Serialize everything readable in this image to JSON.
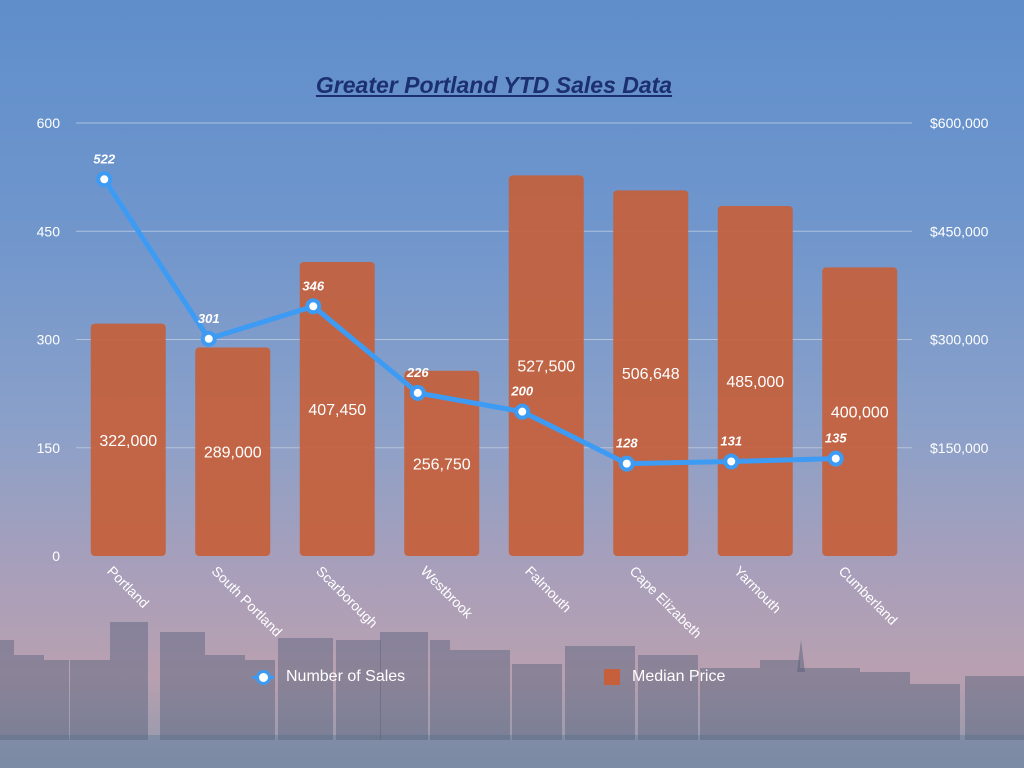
{
  "chart_data": {
    "type": "bar+line",
    "title": "Greater Portland YTD Sales Data",
    "categories": [
      "Portland",
      "South Portland",
      "Scarborough",
      "Westbrook",
      "Falmouth",
      "Cape Elizabeth",
      "Yarmouth",
      "Cumberland"
    ],
    "series": [
      {
        "name": "Median Price",
        "type": "bar",
        "axis": "right",
        "values": [
          322000,
          289000,
          407450,
          256750,
          527500,
          506648,
          485000,
          400000
        ],
        "labels": [
          "322,000",
          "289,000",
          "407,450",
          "256,750",
          "527,500",
          "506,648",
          "485,000",
          "400,000"
        ],
        "color": "#c65f3b"
      },
      {
        "name": "Number of Sales",
        "type": "line",
        "axis": "left",
        "values": [
          522,
          301,
          346,
          226,
          200,
          128,
          131,
          135
        ],
        "labels": [
          "522",
          "301",
          "346",
          "226",
          "200",
          "128",
          "131",
          "135"
        ],
        "color": "#3d9bf4"
      }
    ],
    "left_axis": {
      "ylim": [
        0,
        600
      ],
      "ticks": [
        0,
        150,
        300,
        450,
        600
      ],
      "tick_labels": [
        "0",
        "150",
        "300",
        "450",
        "600"
      ]
    },
    "right_axis": {
      "ylim": [
        0,
        600000
      ],
      "ticks": [
        150000,
        300000,
        450000,
        600000
      ],
      "tick_labels": [
        "$150,000",
        "$300,000",
        "$450,000",
        "$600,000"
      ]
    },
    "grid": true,
    "legend_position": "bottom"
  }
}
